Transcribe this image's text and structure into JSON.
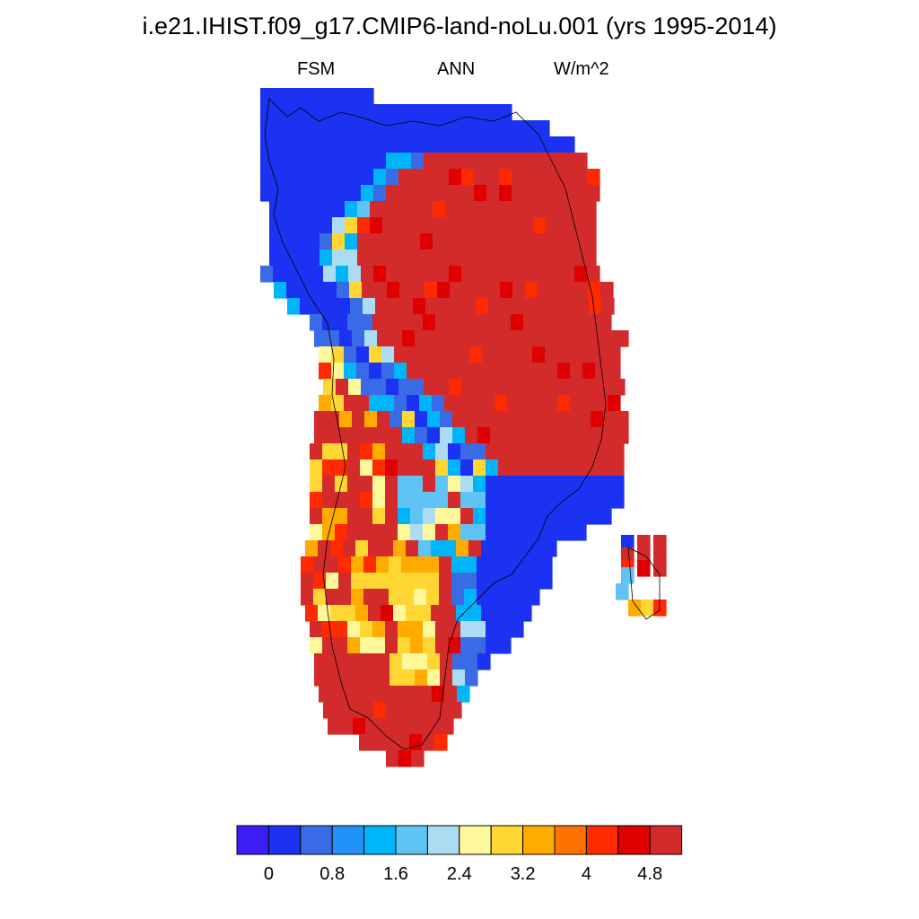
{
  "title": "i.e21.IHIST.f09_g17.CMIP6-land-noLu.001 (yrs 1995-2014)",
  "subtitle_left": "FSM",
  "subtitle_center": "ANN",
  "subtitle_right": "W/m^2",
  "colorbar": {
    "colors": [
      "#3c1df5",
      "#1c32f2",
      "#3a6be6",
      "#2192fa",
      "#00b4fa",
      "#5fc4f5",
      "#acdcf2",
      "#fff89a",
      "#ffd632",
      "#ffab00",
      "#ff7200",
      "#ff2a00",
      "#e00000",
      "#d32b2b"
    ],
    "labels": [
      "0",
      "0.8",
      "1.6",
      "2.4",
      "3.2",
      "4",
      "4.8"
    ]
  },
  "legend_colors": {
    "ocean": "#ffffff",
    "coastline": "#000000"
  }
}
